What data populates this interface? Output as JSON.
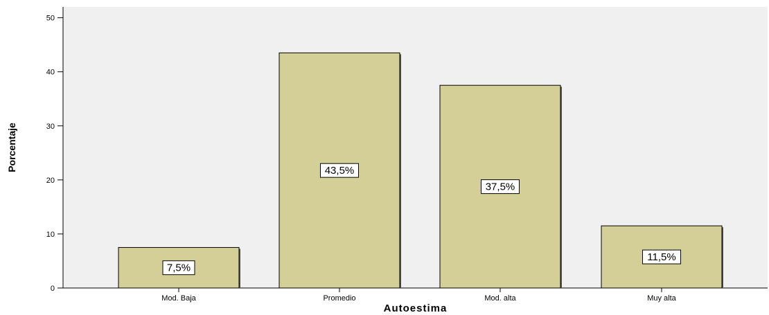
{
  "chart_data": {
    "type": "bar",
    "categories": [
      "Mod. Baja",
      "Promedio",
      "Mod. alta",
      "Muy alta"
    ],
    "values": [
      7.5,
      43.5,
      37.5,
      11.5
    ],
    "data_labels": [
      "7,5%",
      "43,5%",
      "37,5%",
      "11,5%"
    ],
    "xlabel": "Autoestima",
    "ylabel": "Porcentaje",
    "ylim": [
      0,
      52
    ],
    "yticks": [
      0,
      10,
      20,
      30,
      40,
      50
    ],
    "grid": false,
    "bar_color": "#d4cf96",
    "plot_background": "#f0f0f0"
  }
}
